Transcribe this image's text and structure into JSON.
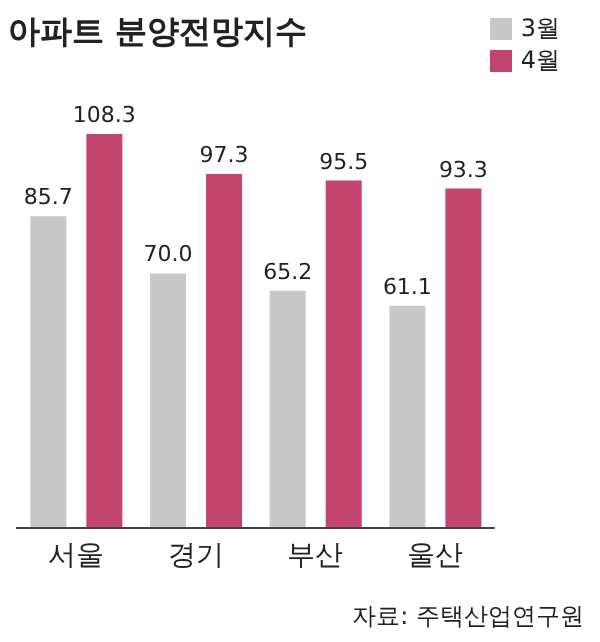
{
  "chart_data": {
    "type": "bar",
    "title": "아파트 분양전망지수",
    "categories": [
      "서울",
      "경기",
      "부산",
      "울산"
    ],
    "series": [
      {
        "name": "3월",
        "color": "#c8c8c8",
        "values": [
          85.7,
          70.0,
          65.2,
          61.1
        ],
        "value_labels": [
          "85.7",
          "70.0",
          "65.2",
          "61.1"
        ]
      },
      {
        "name": "4월",
        "color": "#c2456e",
        "values": [
          108.3,
          97.3,
          95.5,
          93.3
        ],
        "value_labels": [
          "108.3",
          "97.3",
          "95.5",
          "93.3"
        ]
      }
    ],
    "legend": "top right",
    "annotations": [
      "자료: 주택산업연구원"
    ]
  }
}
